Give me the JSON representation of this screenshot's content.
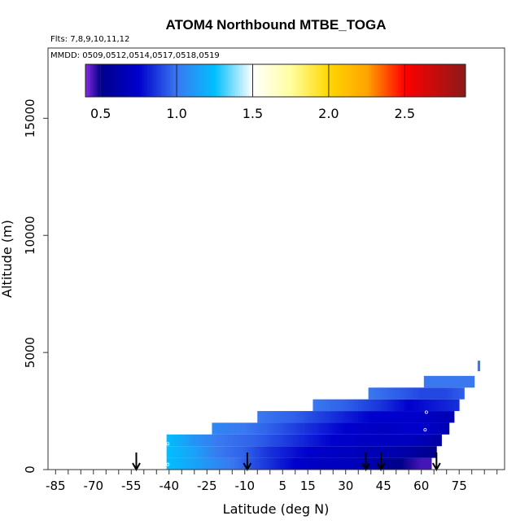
{
  "chart_data": {
    "type": "heatmap",
    "title": "ATOM4 Northbound MTBE_TOGA",
    "flights_label": "Flts: 7,8,9,10,11,12",
    "dates_label": "MMDD: 0509,0512,0514,0517,0518,0519",
    "xlabel": "Latitude (deg N)",
    "ylabel": "Altitude (m)",
    "xlim": [
      -88,
      93
    ],
    "ylim": [
      0,
      18000
    ],
    "x_ticks": [
      -85,
      -70,
      -55,
      -40,
      -25,
      -10,
      5,
      15,
      30,
      45,
      60,
      75
    ],
    "x_tick_labels": [
      "-85",
      "-70",
      "-55",
      "-40",
      "-25",
      "-10",
      "5",
      "15",
      "30",
      "45",
      "60",
      "75"
    ],
    "x_minor_step": 5,
    "y_ticks": [
      0,
      5000,
      10000,
      15000
    ],
    "y_tick_labels": [
      "0",
      "5000",
      "10000",
      "15000"
    ],
    "colorbar": {
      "min": 0.4,
      "max": 2.9,
      "ticks": [
        0.5,
        1.0,
        1.5,
        2.0,
        2.5
      ],
      "tick_labels": [
        "0.5",
        "1.0",
        "1.5",
        "2.0",
        "2.5"
      ],
      "stops": [
        [
          0.4,
          "#8A2BE2"
        ],
        [
          0.5,
          "#00008B"
        ],
        [
          0.75,
          "#0000CD"
        ],
        [
          1.0,
          "#3A78F0"
        ],
        [
          1.25,
          "#00BFFF"
        ],
        [
          1.5,
          "#FFFFFF"
        ],
        [
          1.75,
          "#FFFFA0"
        ],
        [
          2.0,
          "#FFD700"
        ],
        [
          2.25,
          "#FFA500"
        ],
        [
          2.5,
          "#FF0000"
        ],
        [
          2.9,
          "#8B1A1A"
        ]
      ]
    },
    "arrows_lat": [
      -53,
      -9,
      38,
      44,
      66
    ],
    "rows": [
      {
        "alt_bottom": 0,
        "alt_top": 500,
        "lat_start": -41,
        "lat_end": 64,
        "knots": [
          [
            -41,
            1.25
          ],
          [
            -30,
            1.15
          ],
          [
            -20,
            1.05
          ],
          [
            -10,
            0.95
          ],
          [
            0,
            0.85
          ],
          [
            10,
            0.75
          ],
          [
            20,
            0.7
          ],
          [
            30,
            0.7
          ],
          [
            40,
            0.65
          ],
          [
            45,
            0.55
          ],
          [
            52,
            0.5
          ],
          [
            60,
            0.45
          ],
          [
            64,
            0.45
          ]
        ]
      },
      {
        "alt_bottom": 500,
        "alt_top": 1000,
        "lat_start": -41,
        "lat_end": 66,
        "knots": [
          [
            -41,
            1.25
          ],
          [
            -30,
            1.15
          ],
          [
            -20,
            1.0
          ],
          [
            -10,
            0.95
          ],
          [
            0,
            0.85
          ],
          [
            15,
            0.75
          ],
          [
            30,
            0.7
          ],
          [
            45,
            0.65
          ],
          [
            55,
            0.6
          ],
          [
            66,
            0.5
          ]
        ]
      },
      {
        "alt_bottom": 1000,
        "alt_top": 1500,
        "lat_start": -41,
        "lat_end": 68,
        "knots": [
          [
            -41,
            1.25
          ],
          [
            -30,
            1.1
          ],
          [
            -20,
            1.0
          ],
          [
            -5,
            0.95
          ],
          [
            10,
            0.85
          ],
          [
            25,
            0.75
          ],
          [
            40,
            0.7
          ],
          [
            55,
            0.7
          ],
          [
            68,
            0.6
          ]
        ]
      },
      {
        "alt_bottom": 1500,
        "alt_top": 2000,
        "lat_start": -23,
        "lat_end": 71,
        "knots": [
          [
            -23,
            1.05
          ],
          [
            -10,
            1.0
          ],
          [
            0,
            0.95
          ],
          [
            15,
            0.85
          ],
          [
            30,
            0.75
          ],
          [
            45,
            0.7
          ],
          [
            60,
            0.75
          ],
          [
            71,
            0.65
          ]
        ]
      },
      {
        "alt_bottom": 2000,
        "alt_top": 2500,
        "lat_start": -5,
        "lat_end": 73,
        "knots": [
          [
            -5,
            1.0
          ],
          [
            10,
            0.95
          ],
          [
            25,
            0.85
          ],
          [
            40,
            0.75
          ],
          [
            55,
            0.75
          ],
          [
            73,
            0.65
          ]
        ]
      },
      {
        "alt_bottom": 2500,
        "alt_top": 3000,
        "lat_start": 17,
        "lat_end": 75,
        "knots": [
          [
            17,
            1.0
          ],
          [
            30,
            0.95
          ],
          [
            45,
            0.85
          ],
          [
            55,
            0.75
          ],
          [
            65,
            0.8
          ],
          [
            75,
            0.85
          ]
        ]
      },
      {
        "alt_bottom": 3000,
        "alt_top": 3500,
        "lat_start": 39,
        "lat_end": 77,
        "knots": [
          [
            39,
            1.0
          ],
          [
            50,
            0.95
          ],
          [
            60,
            0.9
          ],
          [
            70,
            0.9
          ],
          [
            77,
            0.95
          ]
        ]
      },
      {
        "alt_bottom": 3500,
        "alt_top": 4000,
        "lat_start": 61,
        "lat_end": 81,
        "knots": [
          [
            61,
            1.0
          ],
          [
            70,
            1.0
          ],
          [
            81,
            1.0
          ]
        ]
      },
      {
        "alt_bottom": 4200,
        "alt_top": 4650,
        "lat_start": 82.3,
        "lat_end": 83.2,
        "knots": [
          [
            82.3,
            1.0
          ],
          [
            83.2,
            1.0
          ]
        ]
      }
    ],
    "markers": [
      {
        "lat": -40.5,
        "alt": 220
      },
      {
        "lat": -40.5,
        "alt": 1100
      },
      {
        "lat": 61.5,
        "alt": 1700
      },
      {
        "lat": 62,
        "alt": 2450
      }
    ]
  }
}
